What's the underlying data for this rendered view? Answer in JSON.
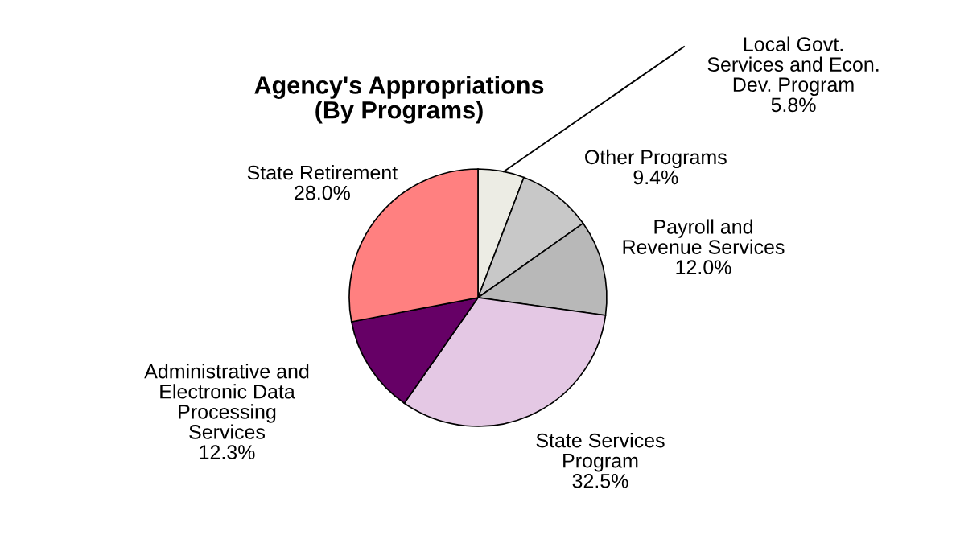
{
  "chart_data": {
    "type": "pie",
    "title": "Agency's Appropriations\n(By Programs)",
    "categories": [
      "Local Govt.\nServices and Econ.\nDev. Program",
      "Other Programs",
      "Payroll and\nRevenue Services",
      "State Services\nProgram",
      "Administrative and\nElectronic Data\nProcessing\nServices",
      "State Retirement"
    ],
    "values": [
      5.8,
      9.4,
      12.0,
      32.5,
      12.3,
      28.0
    ],
    "colors": [
      "#ecece4",
      "#c8c8c8",
      "#b8b8b8",
      "#e4c8e4",
      "#660066",
      "#ff8080"
    ],
    "value_labels": [
      "5.8%",
      "9.4%",
      "12.0%",
      "32.5%",
      "12.3%",
      "28.0%"
    ]
  }
}
